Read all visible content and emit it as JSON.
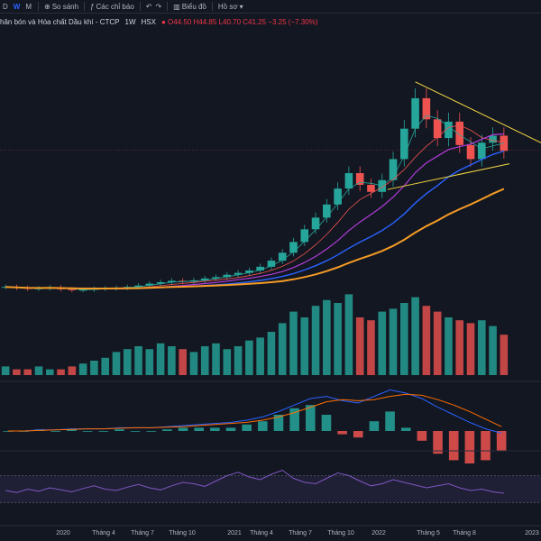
{
  "toolbar": {
    "timeframes": [
      "D",
      "W",
      "M"
    ],
    "active_timeframe": "W",
    "compare_label": "So sánh",
    "indicators_label": "Các chỉ báo",
    "chart_label": "Biểu đồ",
    "profile_label": "Hồ sơ"
  },
  "legend": {
    "title": "hân bón và Hóa chất Dầu khí - CTCP",
    "interval": "1W",
    "exchange": "HSX",
    "open": "O44.50",
    "high": "H44.85",
    "low": "L40.70",
    "close": "C41.25",
    "change": "−3.25 (−7.30%)"
  },
  "colors": {
    "background": "#131722",
    "up": "#26a69a",
    "down": "#ef5350",
    "trendline": "#f5d742",
    "ma_orange": "#f59b24",
    "ma_blue": "#2962ff",
    "ma_purple": "#b23cd9",
    "macd_line": "#2962ff",
    "signal_line": "#ff6d00",
    "rsi_line": "#7e57c2",
    "rsi_band": "#7e57c2"
  },
  "x_axis_labels": [
    "2020",
    "Tháng 4",
    "Tháng 7",
    "Tháng 10",
    "2021",
    "Tháng 4",
    "Tháng 7",
    "Tháng 10",
    "2022",
    "Tháng 5",
    "Tháng 8",
    "2023"
  ],
  "chart_data": {
    "type": "candlestick",
    "x_axis": [
      "2020",
      "Tháng 4",
      "Tháng 7",
      "Tháng 10",
      "2021",
      "Tháng 4",
      "Tháng 7",
      "Tháng 10",
      "2022",
      "Tháng 5",
      "Tháng 8",
      "2023"
    ],
    "close_series": [
      12.2,
      12.0,
      11.8,
      11.9,
      12.1,
      11.7,
      11.5,
      11.6,
      11.8,
      11.9,
      12.0,
      12.2,
      12.5,
      12.9,
      13.2,
      13.5,
      13.3,
      13.6,
      14.0,
      14.3,
      14.8,
      15.2,
      15.7,
      16.5,
      17.8,
      19.5,
      21.8,
      24.5,
      27.0,
      29.8,
      33.2,
      36.5,
      34.0,
      32.5,
      35.0,
      39.5,
      46.0,
      52.5,
      48.0,
      44.0,
      47.5,
      42.5,
      39.5,
      43.0,
      44.5,
      41.25
    ],
    "volume_series": [
      3,
      2,
      2,
      3,
      2,
      2,
      3,
      4,
      5,
      6,
      8,
      9,
      10,
      9,
      11,
      10,
      9,
      8,
      10,
      11,
      9,
      10,
      12,
      13,
      15,
      18,
      22,
      20,
      24,
      26,
      25,
      28,
      20,
      19,
      22,
      23,
      25,
      27,
      24,
      22,
      20,
      19,
      18,
      19,
      17,
      14
    ],
    "macd_series": [
      0,
      0,
      0.1,
      0.1,
      0.2,
      0.2,
      0.2,
      0.3,
      0.3,
      0.3,
      0.4,
      0.5,
      0.6,
      0.7,
      0.8,
      1.0,
      1.3,
      1.8,
      2.4,
      3.0,
      3.2,
      2.8,
      2.6,
      3.2,
      3.8,
      3.5,
      3.0,
      2.2,
      1.5,
      0.8,
      0.2,
      -0.2
    ],
    "signal_series": [
      0,
      0,
      0.05,
      0.1,
      0.15,
      0.2,
      0.2,
      0.25,
      0.3,
      0.3,
      0.35,
      0.4,
      0.5,
      0.6,
      0.7,
      0.8,
      1.0,
      1.3,
      1.7,
      2.2,
      2.7,
      2.9,
      2.8,
      2.9,
      3.2,
      3.4,
      3.3,
      2.9,
      2.4,
      1.8,
      1.1,
      0.4
    ],
    "rsi_series": [
      48,
      45,
      50,
      47,
      52,
      49,
      46,
      51,
      55,
      50,
      48,
      53,
      57,
      52,
      49,
      55,
      60,
      58,
      54,
      62,
      70,
      75,
      68,
      64,
      72,
      78,
      66,
      60,
      58,
      66,
      74,
      70,
      62,
      55,
      58,
      64,
      60,
      56,
      52,
      55,
      58,
      52,
      48,
      50,
      46,
      44
    ],
    "lines": [
      "moving averages",
      "descending triangle trendlines",
      "volume",
      "MACD",
      "RSI"
    ]
  }
}
